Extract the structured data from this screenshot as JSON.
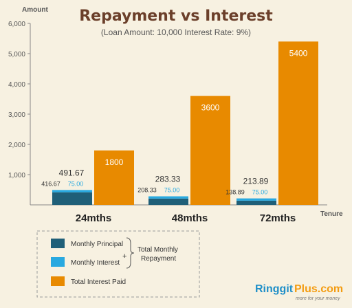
{
  "chart_data": {
    "type": "bar",
    "title": "Repayment vs Interest",
    "subtitle": "(Loan Amount: 10,000    Interest Rate: 9%)",
    "ylabel": "Amount",
    "xlabel": "Tenure",
    "ylim": [
      0,
      6000
    ],
    "yticks": [
      "1,000",
      "2,000",
      "3,000",
      "4,000",
      "5,000",
      "6,000"
    ],
    "ytick_values": [
      1000,
      2000,
      3000,
      4000,
      5000,
      6000
    ],
    "categories": [
      "24mths",
      "48mths",
      "72mths"
    ],
    "series": [
      {
        "name": "Monthly Principal",
        "values": [
          416.67,
          208.33,
          138.89
        ],
        "color": "#1f5f78"
      },
      {
        "name": "Monthly  Interest",
        "values": [
          75.0,
          75.0,
          75.0
        ],
        "color": "#29a9e0"
      },
      {
        "name": "Total Interest Paid",
        "values": [
          1800,
          3600,
          5400
        ],
        "color": "#e88a00"
      }
    ],
    "labels": {
      "principal": [
        "416.67",
        "208.33",
        "138.89"
      ],
      "interest": [
        "75.00",
        "75.00",
        "75.00"
      ],
      "total_monthly": [
        "491.67",
        "283.33",
        "213.89"
      ],
      "total_interest": [
        "1800",
        "3600",
        "5400"
      ]
    },
    "legend": {
      "group_label_line1": "Total Monthly",
      "group_label_line2": "Repayment",
      "plus": "+"
    }
  },
  "brand": {
    "name_a": "Ringgit",
    "name_b": "Plus.com",
    "tagline": "more for your money"
  },
  "colors": {
    "principal": "#1f5f78",
    "interest": "#29a9e0",
    "total_interest": "#e88a00",
    "background": "#f7f1e1"
  }
}
